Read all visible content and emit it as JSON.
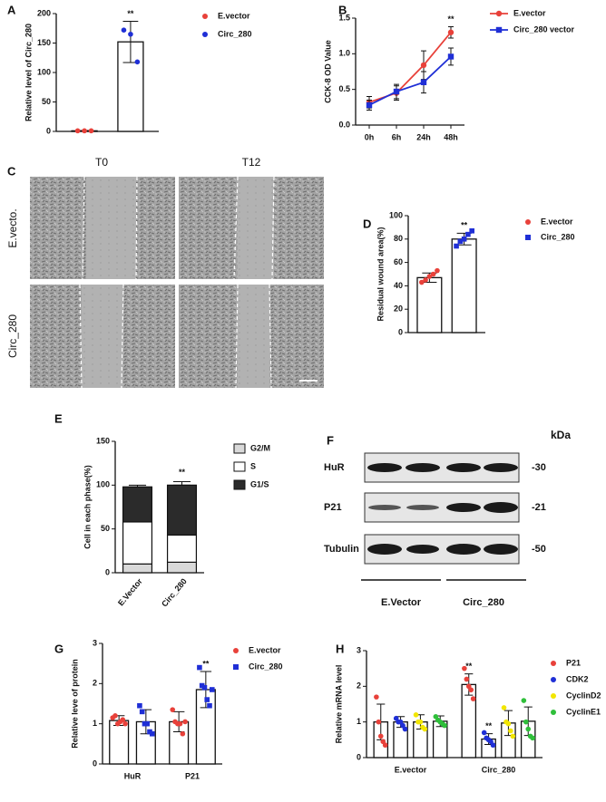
{
  "panel_labels": [
    "A",
    "B",
    "C",
    "D",
    "E",
    "F",
    "G",
    "H"
  ],
  "chart_data": [
    {
      "type": "bar",
      "ylabel": "Relative level of Circ_280",
      "categories": [
        null
      ],
      "ylim": [
        0,
        200
      ],
      "yticks": [
        0,
        50,
        100,
        150,
        200
      ],
      "series": [
        {
          "name": "E.vector",
          "color": "#e8413a",
          "marker": "circle",
          "values": [
            1
          ],
          "errors": [
            0.5
          ],
          "points": [
            [
              1,
              1,
              1
            ]
          ],
          "significance": [
            null
          ]
        },
        {
          "name": "Circ_280",
          "color": "#1f2fd6",
          "marker": "circle",
          "values": [
            152
          ],
          "errors": [
            35
          ],
          "points": [
            [
              172,
              165,
              118
            ]
          ],
          "significance": [
            "**"
          ]
        }
      ]
    },
    {
      "type": "line",
      "ylabel": "CCK-8 OD Value",
      "categories": [
        "0h",
        "6h",
        "24h",
        "48h"
      ],
      "ylim": [
        0,
        1.5
      ],
      "yticks": [
        {
          "value": 0,
          "label": "0.0"
        },
        0.5,
        {
          "value": 1,
          "label": "1.0"
        },
        1.5
      ],
      "series": [
        {
          "name": "E.vector",
          "color": "#e8413a",
          "marker": "circle",
          "values": [
            0.32,
            0.45,
            0.84,
            1.3
          ],
          "errors": [
            0.08,
            0.1,
            0.2,
            0.08
          ],
          "significance": [
            null,
            null,
            null,
            "**"
          ]
        },
        {
          "name": "Circ_280 vector",
          "color": "#1f2fd6",
          "marker": "square",
          "values": [
            0.28,
            0.47,
            0.6,
            0.96
          ],
          "errors": [
            0.07,
            0.1,
            0.15,
            0.12
          ],
          "significance": [
            null,
            null,
            null,
            null
          ]
        }
      ]
    },
    {
      "type": "bar",
      "ylabel": "Residual wound area(%)",
      "categories": [
        null
      ],
      "ylim": [
        0,
        100
      ],
      "yticks": [
        0,
        20,
        40,
        60,
        80,
        100
      ],
      "series": [
        {
          "name": "E.vector",
          "color": "#e8413a",
          "marker": "circle",
          "values": [
            47
          ],
          "errors": [
            4
          ],
          "points": [
            [
              43,
              45,
              48,
              50,
              53
            ]
          ],
          "significance": [
            null
          ]
        },
        {
          "name": "Circ_280",
          "color": "#1f2fd6",
          "marker": "square",
          "values": [
            80
          ],
          "errors": [
            5
          ],
          "points": [
            [
              74,
              78,
              80,
              84,
              87
            ]
          ],
          "significance": [
            "**"
          ]
        }
      ]
    },
    {
      "type": "stacked_bar",
      "ylabel": "Cell in each phase(%)",
      "categories": [
        "E.Vector",
        "Circ_280"
      ],
      "ylim": [
        0,
        150
      ],
      "yticks": [
        0,
        50,
        100,
        150
      ],
      "series": [
        {
          "name": "G2/M",
          "color": "#d9d9d9",
          "values": [
            10,
            12
          ],
          "errors": [
            6,
            6
          ],
          "significance": [
            null,
            null
          ]
        },
        {
          "name": "S",
          "color": "#ffffff",
          "values": [
            48,
            31
          ],
          "errors": [
            7,
            7
          ],
          "significance": [
            null,
            "**"
          ]
        },
        {
          "name": "G1/S",
          "color": "#2b2b2b",
          "values": [
            40,
            57
          ],
          "errors": [
            2,
            4
          ],
          "significance": [
            null,
            "**"
          ]
        }
      ]
    },
    {
      "type": "bar",
      "ylabel": "Relative leve of protein",
      "categories": [
        "HuR",
        "P21"
      ],
      "ylim": [
        0,
        3
      ],
      "yticks": [
        0,
        1,
        2,
        3
      ],
      "series": [
        {
          "name": "E.vector",
          "color": "#e8413a",
          "marker": "circle",
          "values": [
            1.08,
            1.05
          ],
          "errors": [
            0.12,
            0.25
          ],
          "points": [
            [
              1.15,
              1.2,
              1.0,
              1.05,
              1.1,
              1.0
            ],
            [
              1.35,
              1.05,
              1.0,
              1.0,
              0.75,
              1.05
            ]
          ],
          "significance": [
            null,
            null
          ]
        },
        {
          "name": "Circ_280",
          "color": "#1f2fd6",
          "marker": "square",
          "values": [
            1.05,
            1.85
          ],
          "errors": [
            0.3,
            0.45
          ],
          "points": [
            [
              1.45,
              1.3,
              1.0,
              1.0,
              0.8,
              0.75
            ],
            [
              2.4,
              1.95,
              1.9,
              1.6,
              1.45,
              1.85
            ]
          ],
          "significance": [
            null,
            "**"
          ]
        }
      ]
    },
    {
      "type": "bar",
      "ylabel": "Relative mRNA level",
      "categories": [
        "E.vector",
        "Circ_280"
      ],
      "ylim": [
        0,
        3
      ],
      "yticks": [
        0,
        1,
        2,
        3
      ],
      "series": [
        {
          "name": "P21",
          "color": "#e8413a",
          "marker": "circle",
          "values": [
            1.0,
            2.05
          ],
          "errors": [
            0.5,
            0.3
          ],
          "points": [
            [
              1.7,
              1.0,
              0.6,
              0.45,
              0.35
            ],
            [
              2.5,
              2.2,
              2.0,
              1.9,
              1.65
            ]
          ],
          "significance": [
            null,
            "**"
          ]
        },
        {
          "name": "CDK2",
          "color": "#1f2fd6",
          "marker": "circle",
          "values": [
            1.0,
            0.52
          ],
          "errors": [
            0.15,
            0.15
          ],
          "points": [
            [
              1.1,
              1.0,
              1.0,
              0.9,
              0.8
            ],
            [
              0.7,
              0.55,
              0.5,
              0.45,
              0.35
            ]
          ],
          "significance": [
            null,
            "**"
          ]
        },
        {
          "name": "CyclinD2",
          "color": "#f2e600",
          "marker": "circle",
          "values": [
            1.0,
            0.97
          ],
          "errors": [
            0.2,
            0.35
          ],
          "points": [
            [
              1.2,
              1.0,
              1.0,
              0.85,
              0.8
            ],
            [
              1.4,
              1.0,
              0.95,
              0.75,
              0.6
            ]
          ],
          "significance": [
            null,
            null
          ]
        },
        {
          "name": "CyclinE1",
          "color": "#2fbf3a",
          "marker": "circle",
          "values": [
            1.02,
            1.02
          ],
          "errors": [
            0.15,
            0.4
          ],
          "points": [
            [
              1.15,
              1.05,
              1.0,
              0.95,
              0.9
            ],
            [
              1.6,
              1.0,
              0.8,
              0.6,
              0.55
            ]
          ],
          "significance": [
            null,
            null
          ]
        }
      ]
    }
  ],
  "wound_images": {
    "columns": [
      "T0",
      "T12"
    ],
    "rows": [
      "E.vecto.",
      "Circ_280"
    ]
  },
  "western_blot": {
    "unit": "kDa",
    "bands": [
      {
        "name": "HuR",
        "size": "-30"
      },
      {
        "name": "P21",
        "size": "-21"
      },
      {
        "name": "Tubulin",
        "size": "-50"
      }
    ],
    "groups": [
      "E.Vector",
      "Circ_280"
    ]
  }
}
